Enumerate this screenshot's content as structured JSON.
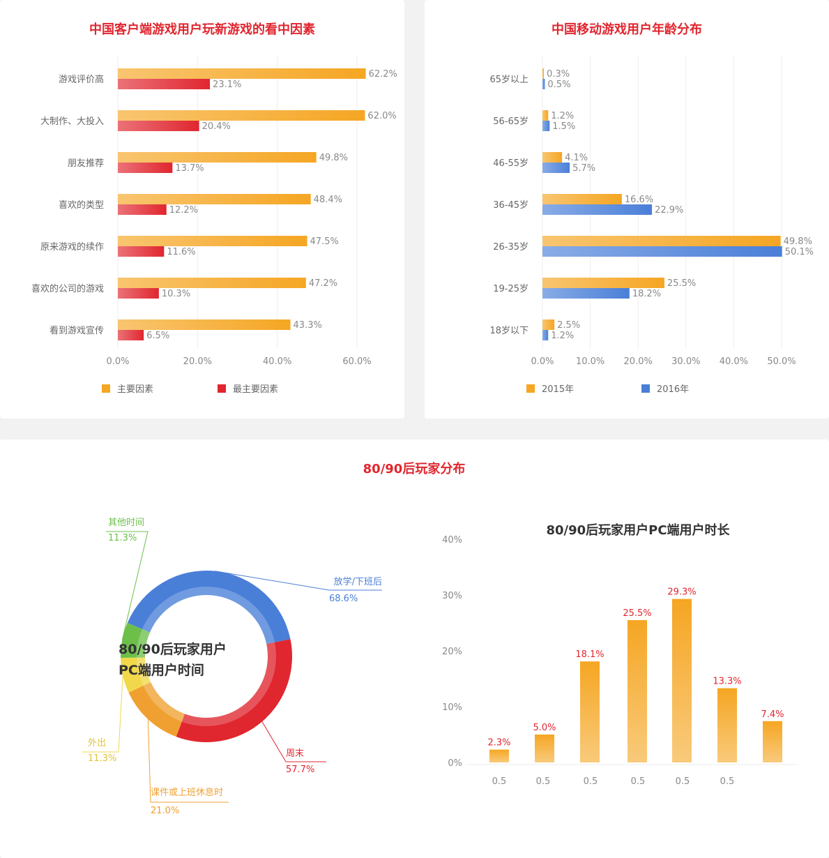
{
  "chart_data": [
    {
      "type": "bar",
      "orientation": "horizontal",
      "title": "中国客户端游戏用户玩新游戏的看中因素",
      "categories": [
        "游戏评价高",
        "大制作、大投入",
        "朋友推荐",
        "喜欢的类型",
        "原来游戏的续作",
        "喜欢的公司的游戏",
        "看到游戏宣传"
      ],
      "series": [
        {
          "name": "主要因素",
          "values": [
            62.2,
            62.0,
            49.8,
            48.4,
            47.5,
            47.2,
            43.3
          ],
          "labels": [
            "62.2%",
            "62.0%",
            "49.8%",
            "48.4%",
            "47.5%",
            "47.2%",
            "43.3%"
          ],
          "color": "#f5a623"
        },
        {
          "name": "最主要因素",
          "values": [
            23.1,
            20.4,
            13.7,
            12.2,
            11.6,
            10.3,
            6.5
          ],
          "labels": [
            "23.1%",
            "20.4%",
            "13.7%",
            "12.2%",
            "11.6%",
            "10.3%",
            "6.5%"
          ],
          "color": "#e0262f"
        }
      ],
      "xlim": [
        0,
        60
      ],
      "x_ticks": [
        "0.0%",
        "20.0%",
        "40.0%",
        "60.0%"
      ],
      "grid": true,
      "legend_position": "bottom"
    },
    {
      "type": "bar",
      "orientation": "horizontal",
      "title": "中国移动游戏用户年龄分布",
      "categories": [
        "65岁以上",
        "56-65岁",
        "46-55岁",
        "36-45岁",
        "26-35岁",
        "19-25岁",
        "18岁以下"
      ],
      "series": [
        {
          "name": "2015年",
          "values": [
            0.3,
            1.2,
            4.1,
            16.6,
            49.8,
            25.5,
            2.5
          ],
          "labels": [
            "0.3%",
            "1.2%",
            "4.1%",
            "16.6%",
            "49.8%",
            "25.5%",
            "2.5%"
          ],
          "color": "#f5a623"
        },
        {
          "name": "2016年",
          "values": [
            0.5,
            1.5,
            5.7,
            22.9,
            50.1,
            18.2,
            1.2
          ],
          "labels": [
            "0.5%",
            "1.5%",
            "5.7%",
            "22.9%",
            "50.1%",
            "18.2%",
            "1.2%"
          ],
          "color": "#4a7fd8"
        }
      ],
      "xlim": [
        0,
        50
      ],
      "x_ticks": [
        "0.0%",
        "10.0%",
        "20.0%",
        "30.0%",
        "40.0%",
        "50.0%"
      ],
      "grid": true,
      "legend_position": "bottom"
    },
    {
      "type": "pie",
      "variant": "donut",
      "center_label": [
        "80/90后玩家用户",
        "PC端用户时间"
      ],
      "slices": [
        {
          "name": "放学/下班后",
          "value": 68.6,
          "label": "68.6%",
          "color": "#4a7fd8"
        },
        {
          "name": "周末",
          "value": 57.7,
          "label": "57.7%",
          "color": "#e0262f"
        },
        {
          "name": "课件或上班休息时",
          "value": 21.0,
          "label": "21.0%",
          "color": "#f0a030"
        },
        {
          "name": "外出",
          "value": 11.3,
          "label": "11.3%",
          "color": "#f0d84a"
        },
        {
          "name": "其他时间",
          "value": 11.3,
          "label": "11.3%",
          "color": "#6cc04a"
        }
      ]
    },
    {
      "type": "bar",
      "title": "80/90后玩家用户PC端用户时长",
      "categories": [
        "0.5",
        "0.5",
        "0.5",
        "0.5",
        "0.5",
        "0.5",
        ""
      ],
      "values": [
        2.3,
        5.0,
        18.1,
        25.5,
        29.3,
        13.3,
        7.4
      ],
      "labels": [
        "2.3%",
        "5.0%",
        "18.1%",
        "25.5%",
        "29.3%",
        "13.3%",
        "7.4%"
      ],
      "ylim": [
        0,
        40
      ],
      "y_ticks": [
        "0%",
        "10%",
        "20%",
        "30%",
        "40%"
      ],
      "color": "#f5a623"
    }
  ],
  "section_title": "80/90后玩家分布"
}
